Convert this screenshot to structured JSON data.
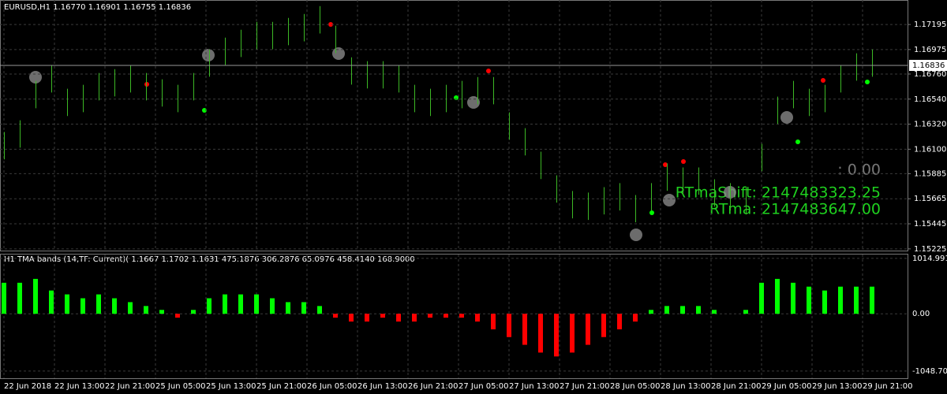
{
  "price_pane": {
    "title": "EURUSD,H1  1.16770 1.16901 1.16755 1.16836",
    "ylim": [
      1.1521,
      1.1741
    ],
    "yticks": [
      1.17195,
      1.16975,
      {
        "value": 1.1676,
        "label": "1.16760"
      },
      {
        "value": 1.1654,
        "label": "1.16540"
      },
      {
        "value": 1.1632,
        "label": "1.16320"
      },
      {
        "value": 1.161,
        "label": "1.16100"
      },
      1.15885,
      1.15665,
      1.15445,
      1.15225
    ],
    "current_price": 1.16836,
    "bar_color": "#3cb825",
    "high": [
      1.16251,
      1.16354,
      1.167,
      1.16838,
      1.16631,
      1.16665,
      1.16769,
      1.16803,
      1.16838,
      1.16769,
      1.16714,
      1.16665,
      1.16769,
      1.16976,
      1.1708,
      1.17149,
      1.17218,
      1.17218,
      1.17253,
      1.17287,
      1.17356,
      1.17184,
      1.16907,
      1.16873,
      1.16873,
      1.16838,
      1.16665,
      1.16631,
      1.16665,
      1.167,
      1.16734,
      1.16734,
      1.16423,
      1.16285,
      1.16078,
      1.15871,
      1.15733,
      1.15719,
      1.15767,
      1.15802,
      1.15698,
      1.15802,
      1.15975,
      1.1594,
      1.1594,
      1.15836,
      1.15802,
      1.15767,
      1.16147,
      1.16562,
      1.167,
      1.16631,
      1.16665,
      1.16838,
      1.16942,
      1.16976
    ],
    "low": [
      1.16011,
      1.16114,
      1.1646,
      1.16598,
      1.16391,
      1.16425,
      1.16529,
      1.16563,
      1.16598,
      1.16529,
      1.16474,
      1.16425,
      1.16529,
      1.16736,
      1.1684,
      1.16909,
      1.16978,
      1.16978,
      1.17013,
      1.17047,
      1.17116,
      1.16944,
      1.16667,
      1.16633,
      1.16633,
      1.16598,
      1.16425,
      1.16391,
      1.16425,
      1.1646,
      1.16494,
      1.16494,
      1.16183,
      1.16045,
      1.15838,
      1.15631,
      1.15493,
      1.15479,
      1.15527,
      1.15562,
      1.15458,
      1.15562,
      1.15735,
      1.157,
      1.157,
      1.15596,
      1.15562,
      1.15527,
      1.15907,
      1.16322,
      1.1646,
      1.16391,
      1.16425,
      1.16598,
      1.16702,
      1.16736
    ],
    "overlay": [
      ": 0.00",
      "RTmaShift:  2147483323.25",
      "RTma:  2147483647.00"
    ]
  },
  "indicator_pane": {
    "title": "H1 TMA bands (14,TF: Current)( 1.1667 1.1702 1.1631 475.1876 306.2876 65.0976 458.4140 168.9000",
    "ylim": [
      -1180,
      1085
    ],
    "yticks": [
      1014.991,
      {
        "value": 0,
        "label": "0.00"
      },
      -1048.702
    ],
    "up_color": "#00ff00",
    "down_color": "#ff0000",
    "histogram": [
      568,
      568,
      639,
      426,
      355,
      284,
      355,
      284,
      213,
      142,
      71,
      -71,
      71,
      284,
      355,
      355,
      355,
      284,
      213,
      213,
      142,
      -71,
      -142,
      -142,
      -71,
      -142,
      -142,
      -71,
      -71,
      -71,
      -142,
      -284,
      -426,
      -568,
      -710,
      -781,
      -710,
      -568,
      -426,
      -284,
      -142,
      71,
      142,
      142,
      142,
      71,
      0,
      71,
      568,
      639,
      568,
      497,
      426,
      497,
      497,
      497
    ]
  },
  "time_axis": [
    "22 Jun 2018",
    "22 Jun 13:00",
    "22 Jun 21:00",
    "25 Jun 05:00",
    "25 Jun 13:00",
    "25 Jun 21:00",
    "26 Jun 05:00",
    "26 Jun 13:00",
    "26 Jun 21:00",
    "27 Jun 05:00",
    "27 Jun 13:00",
    "27 Jun 21:00",
    "28 Jun 05:00",
    "28 Jun 13:00",
    "28 Jun 21:00",
    "29 Jun 05:00",
    "29 Jun 13:00",
    "29 Jun 21:00"
  ]
}
